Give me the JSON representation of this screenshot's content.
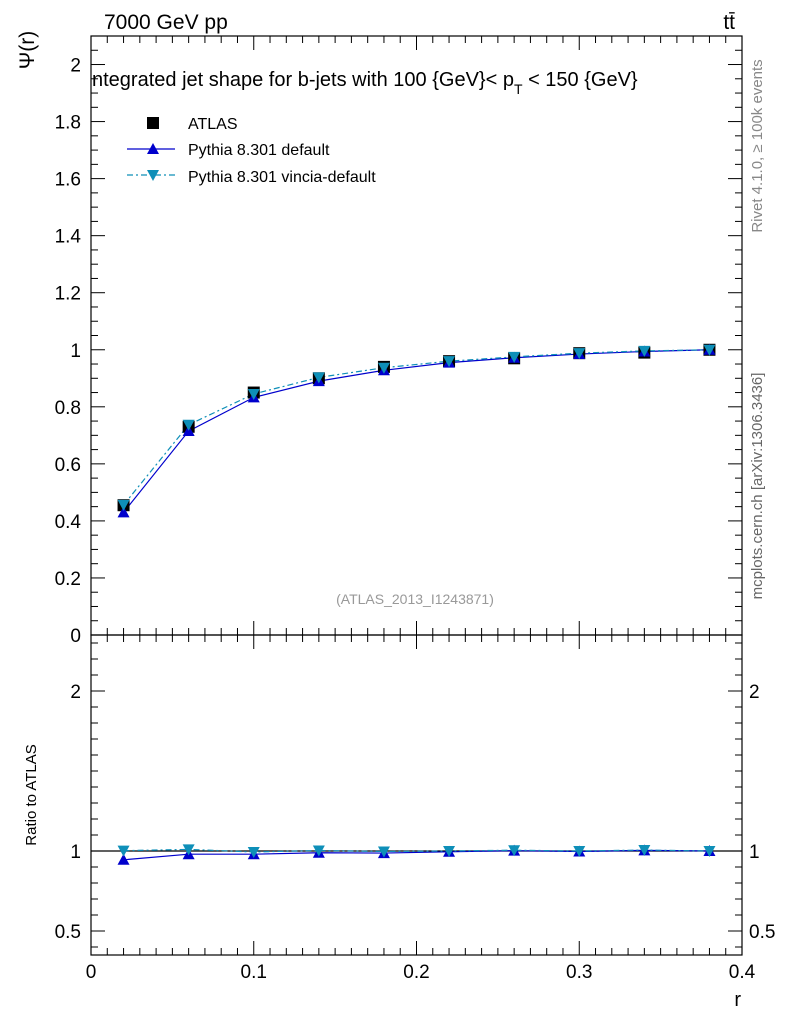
{
  "header": {
    "energy_label": "7000 GeV pp",
    "process_label": "tt̄"
  },
  "side_labels": {
    "rivet": "Rivet 4.1.0, ≥ 100k events",
    "mcplots": "mcplots.cern.ch [arXiv:1306.3436]"
  },
  "colors": {
    "atlas": "#000000",
    "default": "#0000cc",
    "vincia": "#0e8fb8"
  },
  "chart_data": [
    {
      "type": "line",
      "title": "ntegrated jet shape for b-jets with 100 {GeV}< p",
      "title_sub": "T",
      "title_tail": " < 150 {GeV}",
      "ylabel": "Ψ(r)",
      "xlabel": "",
      "watermark": "(ATLAS_2013_I1243871)",
      "xlim": [
        0,
        0.4
      ],
      "ylim": [
        0,
        2.1
      ],
      "yticks": [
        0,
        0.2,
        0.4,
        0.6,
        0.8,
        1,
        1.2,
        1.4,
        1.6,
        1.8,
        2
      ],
      "ytick_labels": [
        "0",
        "0.2",
        "0.4",
        "0.6",
        "0.8",
        "1",
        "1.2",
        "1.4",
        "1.6",
        "1.8",
        "2"
      ],
      "legend_position": "top-left",
      "x": [
        0.02,
        0.06,
        0.1,
        0.14,
        0.18,
        0.22,
        0.26,
        0.3,
        0.34,
        0.38
      ],
      "series": [
        {
          "name": "ATLAS",
          "marker": "square",
          "values": [
            0.455,
            0.73,
            0.85,
            0.9,
            0.94,
            0.96,
            0.97,
            0.988,
            0.99,
            1.0
          ]
        },
        {
          "name": "Pythia 8.301 default",
          "marker": "triangle-up",
          "values": [
            0.43,
            0.715,
            0.833,
            0.89,
            0.928,
            0.955,
            0.972,
            0.985,
            0.994,
            1.0
          ]
        },
        {
          "name": "Pythia 8.301 vincia-default",
          "marker": "triangle-down",
          "values": [
            0.456,
            0.737,
            0.845,
            0.903,
            0.937,
            0.96,
            0.975,
            0.988,
            0.996,
            1.0
          ]
        }
      ]
    },
    {
      "type": "line",
      "title": "",
      "ylabel": "Ratio to ATLAS",
      "xlabel": "r",
      "xlim": [
        0,
        0.4
      ],
      "ylim": [
        0.35,
        2.35
      ],
      "yticks": [
        0.5,
        1,
        2
      ],
      "ytick_labels": [
        "0.5",
        "1",
        "2"
      ],
      "xticks": [
        0,
        0.1,
        0.2,
        0.3,
        0.4
      ],
      "xtick_labels": [
        "0",
        "0.1",
        "0.2",
        "0.3",
        "0.4"
      ],
      "x": [
        0.02,
        0.06,
        0.1,
        0.14,
        0.18,
        0.22,
        0.26,
        0.3,
        0.34,
        0.38
      ],
      "series": [
        {
          "name": "Pythia 8.301 default",
          "marker": "triangle-up",
          "values": [
            0.945,
            0.98,
            0.98,
            0.989,
            0.987,
            0.995,
            1.002,
            0.997,
            1.004,
            1.0
          ]
        },
        {
          "name": "Pythia 8.301 vincia-default",
          "marker": "triangle-down",
          "values": [
            1.002,
            1.01,
            0.994,
            1.003,
            0.997,
            1.0,
            1.005,
            1.0,
            1.006,
            1.0
          ]
        }
      ]
    }
  ]
}
